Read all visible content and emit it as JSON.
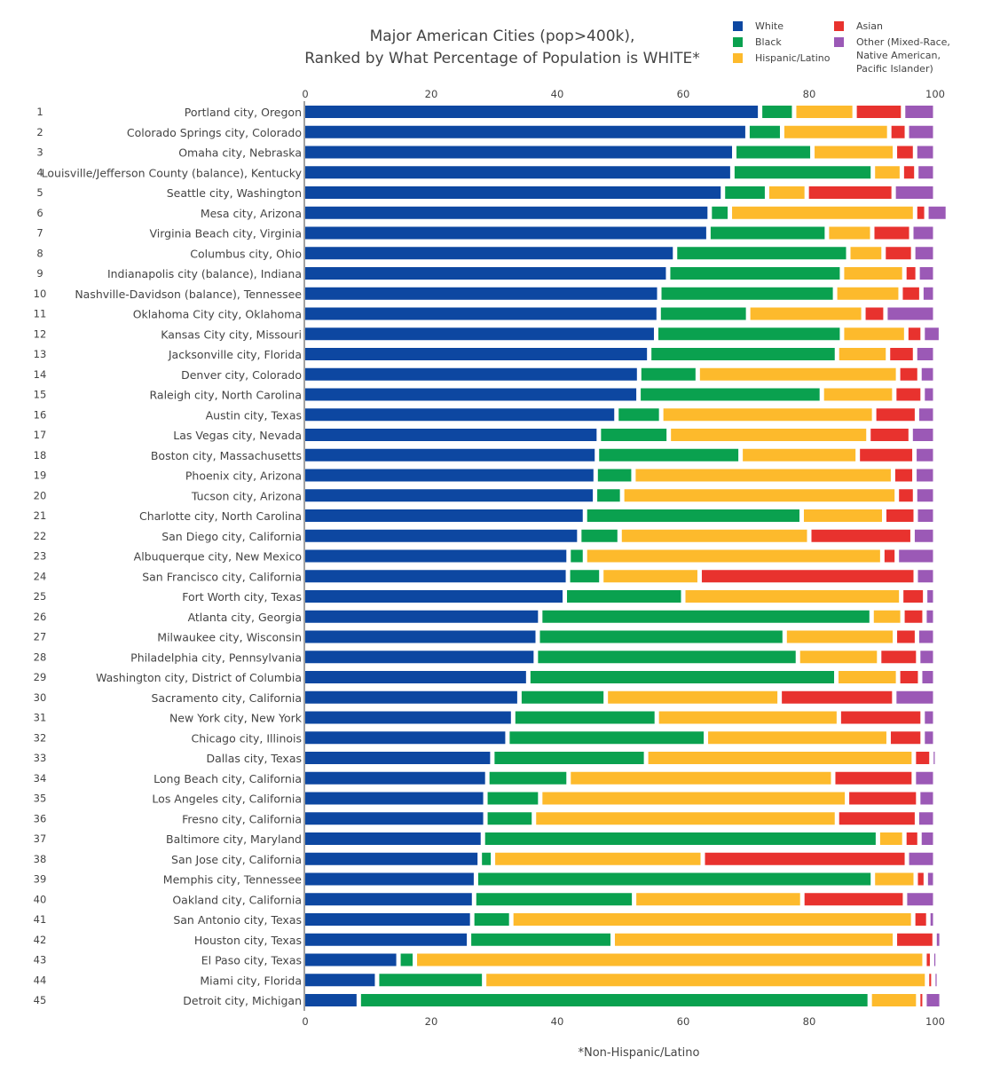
{
  "chart_data": {
    "type": "bar",
    "orientation": "horizontal",
    "stacked": true,
    "title_lines": [
      "Major American Cities (pop>400k),",
      "Ranked by What Percentage of Population is WHITE*"
    ],
    "footnote": "*Non-Hispanic/Latino",
    "xlim": [
      0,
      100
    ],
    "xticks": [
      0,
      20,
      40,
      60,
      80,
      100
    ],
    "grid": false,
    "legend_position": "top-right",
    "ranks": [
      "1",
      "2",
      "3",
      "4",
      "5",
      "6",
      "7",
      "8",
      "9",
      "10",
      "11",
      "12",
      "13",
      "14",
      "15",
      "16",
      "17",
      "18",
      "19",
      "20",
      "21",
      "22",
      "23",
      "24",
      "25",
      "26",
      "27",
      "28",
      "29",
      "30",
      "31",
      "32",
      "33",
      "34",
      "35",
      "36",
      "37",
      "38",
      "39",
      "40",
      "41",
      "42",
      "43",
      "44",
      "45"
    ],
    "categories": [
      "Portland city, Oregon",
      "Colorado Springs city, Colorado",
      "Omaha city, Nebraska",
      "Louisville/Jefferson County (balance), Kentucky",
      "Seattle city, Washington",
      "Mesa city, Arizona",
      "Virginia Beach city, Virginia",
      "Columbus city, Ohio",
      "Indianapolis city (balance), Indiana",
      "Nashville-Davidson (balance), Tennessee",
      "Oklahoma City city, Oklahoma",
      "Kansas City city, Missouri",
      "Jacksonville city, Florida",
      "Denver city, Colorado",
      "Raleigh city, North Carolina",
      "Austin city, Texas",
      "Las Vegas city, Nevada",
      "Boston city, Massachusetts",
      "Phoenix city, Arizona",
      "Tucson city, Arizona",
      "Charlotte city, North Carolina",
      "San Diego city, California",
      "Albuquerque city, New Mexico",
      "San Francisco city, California",
      "Fort Worth city, Texas",
      "Atlanta city, Georgia",
      "Milwaukee city, Wisconsin",
      "Philadelphia city, Pennsylvania",
      "Washington city, District of Columbia",
      "Sacramento city, California",
      "New York city, New York",
      "Chicago city, Illinois",
      "Dallas city, Texas",
      "Long Beach city, California",
      "Los Angeles city, California",
      "Fresno city, California",
      "Baltimore city, Maryland",
      "San Jose city, California",
      "Memphis city, Tennessee",
      "Oakland city, California",
      "San Antonio city, Texas",
      "Houston city, Texas",
      "El Paso city, Texas",
      "Miami city, Florida",
      "Detroit city, Michigan"
    ],
    "series": [
      {
        "name": "White",
        "color": "#0d47a1",
        "values": [
          72.2,
          70.2,
          68.1,
          67.8,
          66.3,
          64.2,
          64.0,
          58.7,
          57.6,
          56.2,
          56.1,
          55.7,
          54.6,
          53.0,
          52.9,
          49.4,
          46.6,
          46.3,
          46.1,
          46.0,
          44.4,
          43.5,
          41.8,
          41.7,
          41.2,
          37.3,
          36.9,
          36.6,
          35.4,
          34.0,
          33.0,
          32.1,
          29.7,
          28.9,
          28.6,
          28.6,
          28.2,
          27.7,
          27.1,
          26.8,
          26.5,
          26.0,
          14.8,
          11.4,
          8.5
        ]
      },
      {
        "name": "Black",
        "color": "#0aa14f",
        "values": [
          5.4,
          5.5,
          12.4,
          22.3,
          7.0,
          3.2,
          18.8,
          27.5,
          27.6,
          27.9,
          14.2,
          29.5,
          29.8,
          9.3,
          29.1,
          7.1,
          11.1,
          22.8,
          6.0,
          4.3,
          34.4,
          6.4,
          2.6,
          5.3,
          18.8,
          52.6,
          39.2,
          41.6,
          48.9,
          13.7,
          22.8,
          31.5,
          24.4,
          12.9,
          8.7,
          7.7,
          62.7,
          2.1,
          63.0,
          25.4,
          6.2,
          22.8,
          2.6,
          17.0,
          81.1
        ]
      },
      {
        "name": "Hispanic/Latino",
        "color": "#fdba2c",
        "values": [
          9.6,
          17.0,
          13.1,
          4.6,
          6.3,
          29.4,
          7.2,
          5.6,
          9.9,
          10.4,
          18.3,
          10.2,
          8.1,
          31.8,
          11.5,
          33.8,
          31.7,
          18.6,
          41.2,
          43.6,
          13.1,
          30.1,
          47.2,
          15.6,
          34.6,
          4.9,
          17.5,
          12.9,
          9.8,
          27.6,
          28.9,
          29.0,
          42.5,
          42.0,
          48.7,
          48.1,
          4.2,
          33.3,
          6.8,
          26.7,
          63.8,
          44.8,
          80.9,
          70.3,
          7.7
        ]
      },
      {
        "name": "Asian",
        "color": "#e8322e",
        "values": [
          7.7,
          2.8,
          3.2,
          2.3,
          13.8,
          1.8,
          6.2,
          4.7,
          2.1,
          3.3,
          3.5,
          2.6,
          4.3,
          3.4,
          4.5,
          6.8,
          6.7,
          9.0,
          3.4,
          2.9,
          5.0,
          16.4,
          2.3,
          34.3,
          3.8,
          3.5,
          3.5,
          6.2,
          3.5,
          18.2,
          13.3,
          5.4,
          2.8,
          12.8,
          11.3,
          12.7,
          2.4,
          32.4,
          1.6,
          16.3,
          2.4,
          6.3,
          1.2,
          1.0,
          1.0
        ]
      },
      {
        "name": "Other (Mixed-Race, Native American, Pacific Islander)",
        "color": "#9b59b6",
        "values": [
          5.1,
          4.5,
          3.2,
          3.0,
          6.6,
          3.4,
          3.8,
          3.5,
          2.8,
          2.2,
          7.9,
          2.9,
          3.2,
          2.5,
          2.0,
          2.9,
          3.9,
          3.3,
          3.3,
          3.2,
          3.1,
          3.6,
          6.1,
          3.1,
          1.6,
          1.7,
          2.9,
          2.7,
          2.4,
          6.5,
          2.0,
          2.0,
          0.6,
          3.4,
          2.7,
          2.9,
          2.5,
          4.5,
          1.5,
          4.8,
          1.1,
          1.1,
          0.5,
          0.3,
          2.7
        ]
      }
    ]
  }
}
